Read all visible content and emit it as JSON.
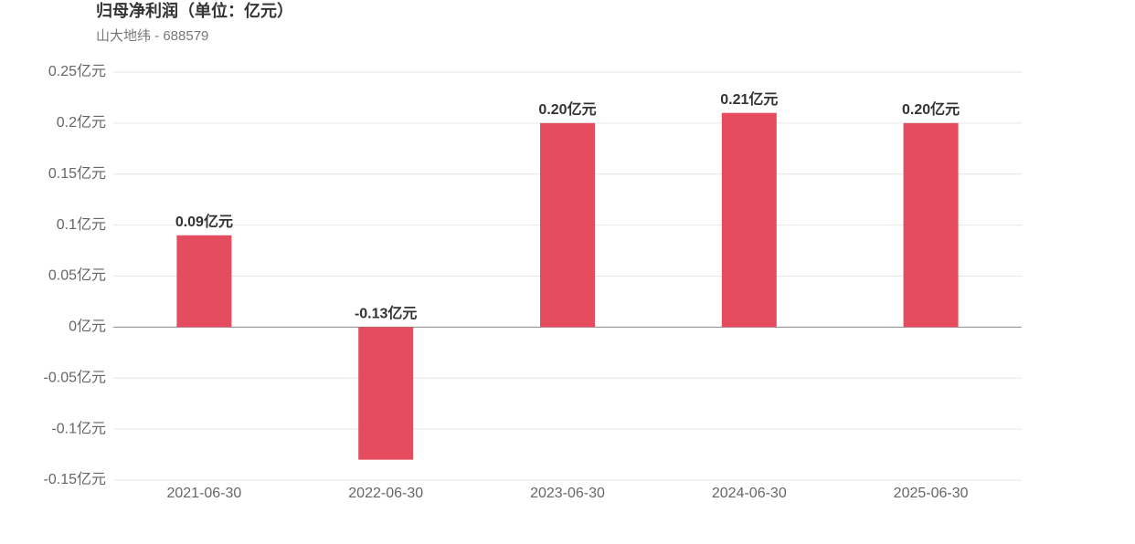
{
  "chart_data": {
    "type": "bar",
    "title": "归母净利润（单位：亿元）",
    "subtitle": "山大地纬 - 688579",
    "categories": [
      "2021-06-30",
      "2022-06-30",
      "2023-06-30",
      "2024-06-30",
      "2025-06-30"
    ],
    "values": [
      0.09,
      -0.13,
      0.2,
      0.21,
      0.2
    ],
    "value_labels": [
      "0.09亿元",
      "-0.13亿元",
      "0.20亿元",
      "0.21亿元",
      "0.20亿元"
    ],
    "color": "#e54c5e",
    "ylim": [
      -0.15,
      0.25
    ],
    "yticks": [
      {
        "value": -0.15,
        "label": "-0.15亿元"
      },
      {
        "value": -0.1,
        "label": "-0.1亿元"
      },
      {
        "value": -0.05,
        "label": "-0.05亿元"
      },
      {
        "value": 0,
        "label": "0亿元"
      },
      {
        "value": 0.05,
        "label": "0.05亿元"
      },
      {
        "value": 0.1,
        "label": "0.1亿元"
      },
      {
        "value": 0.15,
        "label": "0.15亿元"
      },
      {
        "value": 0.2,
        "label": "0.2亿元"
      },
      {
        "value": 0.25,
        "label": "0.25亿元"
      }
    ],
    "grid": true
  }
}
